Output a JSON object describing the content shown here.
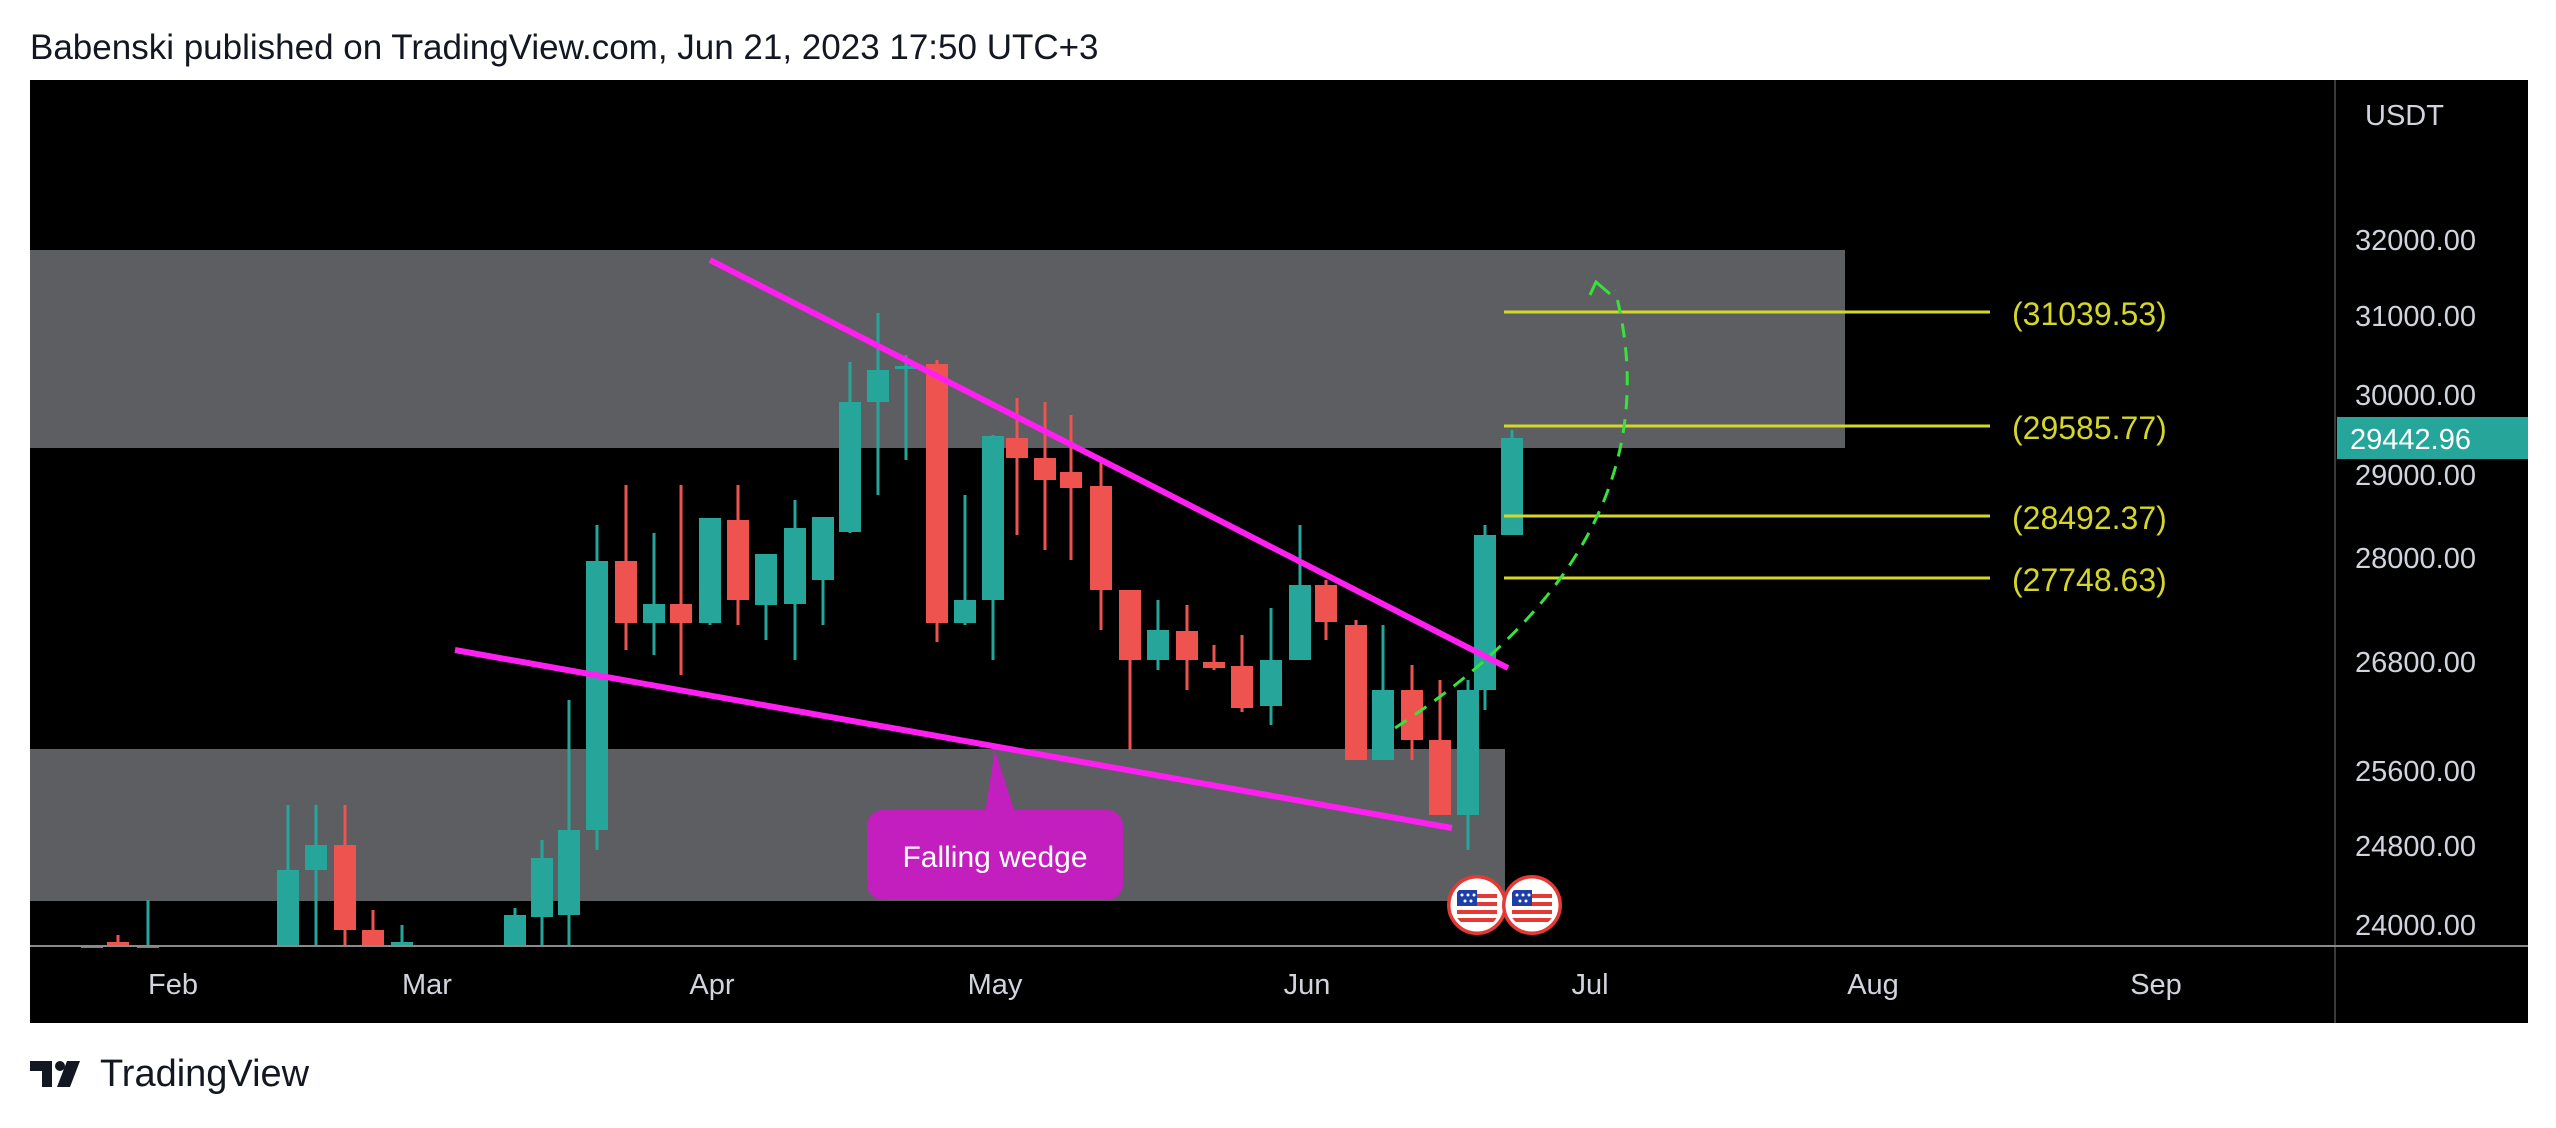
{
  "header": {
    "text": "Babenski published on TradingView.com, Jun 21, 2023 17:50 UTC+3"
  },
  "footer": {
    "brand": "TradingView"
  },
  "chart_data": {
    "type": "candlestick",
    "currency": "USDT",
    "y_ticks": [
      "32000.00",
      "31000.00",
      "30000.00",
      "29000.00",
      "28000.00",
      "26800.00",
      "25600.00",
      "24800.00",
      "24000.00"
    ],
    "x_ticks": [
      "Feb",
      "Mar",
      "Apr",
      "May",
      "Jun",
      "Jul",
      "Aug",
      "Sep"
    ],
    "last_price": "29442.96",
    "levels": [
      {
        "label": "(31039.53)",
        "value": 31039.53
      },
      {
        "label": "(29585.77)",
        "value": 29585.77
      },
      {
        "label": "(28492.37)",
        "value": 28492.37
      },
      {
        "label": "(27748.63)",
        "value": 27748.63
      }
    ],
    "annotation": "Falling wedge",
    "zones": [
      {
        "name": "resistance-zone",
        "from": 29400,
        "to": 31950
      },
      {
        "name": "support-zone",
        "from": 24350,
        "to": 25800
      }
    ],
    "colors": {
      "up": "#26a69a",
      "down": "#ef5350",
      "wedge": "#ff1ff0",
      "level": "#d4d62a",
      "zone": "#5d5e62",
      "target": "#37e23a",
      "label_bg": "#c21fbe"
    }
  }
}
